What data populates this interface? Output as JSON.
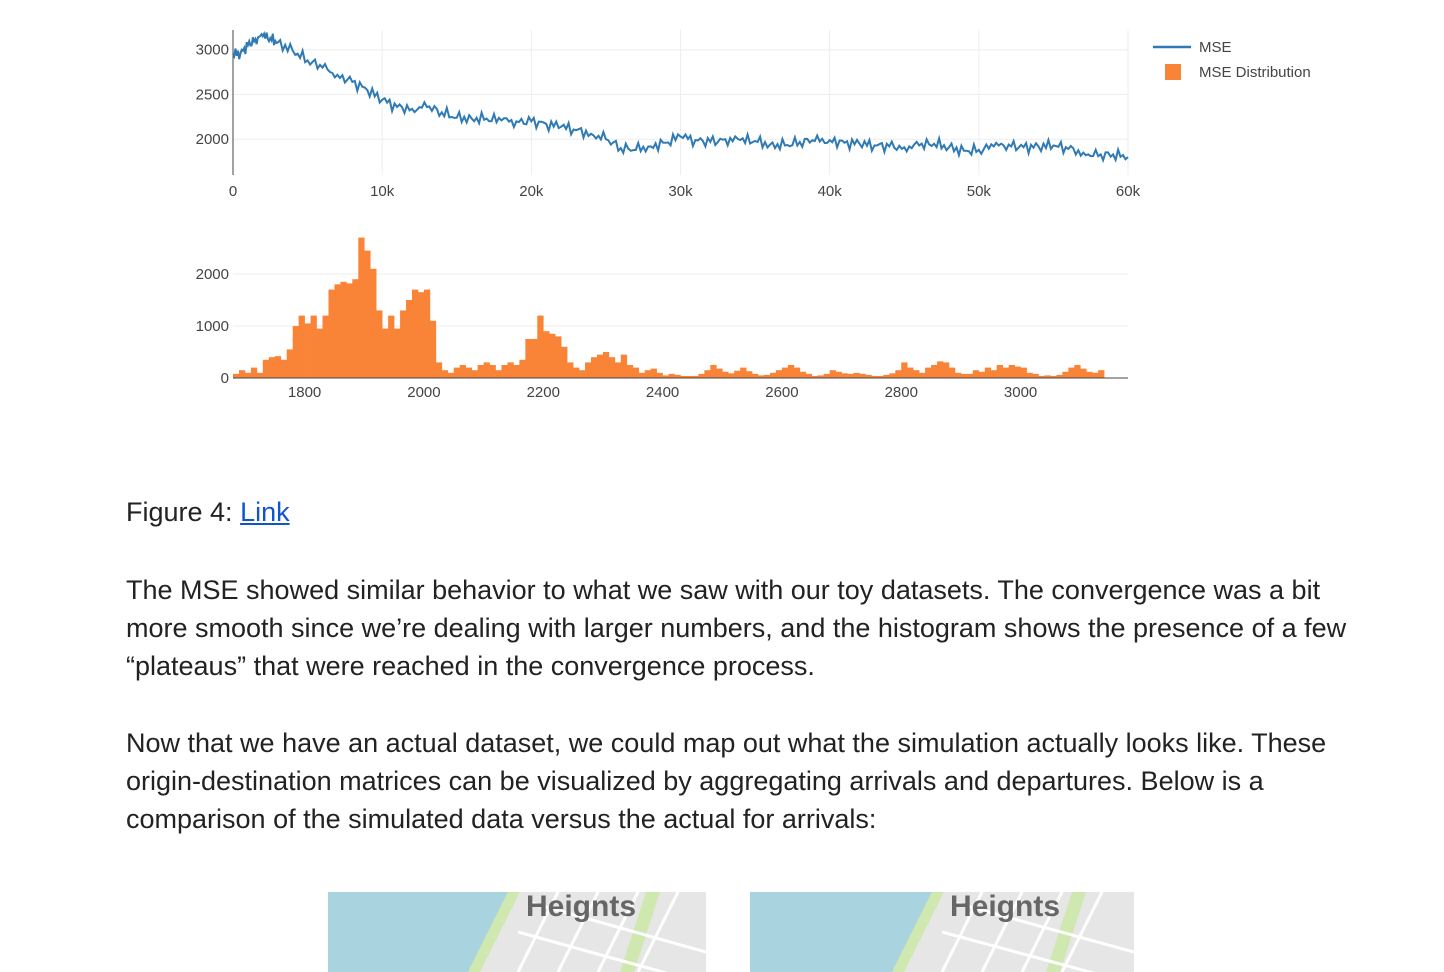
{
  "chart_data": [
    {
      "type": "line",
      "title": "",
      "xlabel": "",
      "ylabel": "",
      "xlim": [
        0,
        60000
      ],
      "ylim": [
        1600,
        3220
      ],
      "x_ticks": [
        0,
        10000,
        20000,
        30000,
        40000,
        50000,
        60000
      ],
      "x_tick_labels": [
        "0",
        "10k",
        "20k",
        "30k",
        "40k",
        "50k",
        "60k"
      ],
      "y_ticks": [
        2000,
        2500,
        3000
      ],
      "y_tick_labels": [
        "2000",
        "2500",
        "3000"
      ],
      "grid": true,
      "color": "#2f7ab4",
      "series": [
        {
          "name": "MSE",
          "x": [
            0,
            500,
            1000,
            1500,
            2000,
            2500,
            3000,
            4000,
            5000,
            6000,
            7000,
            8000,
            9000,
            10000,
            11000,
            12000,
            13000,
            14000,
            15000,
            16000,
            17000,
            18000,
            19000,
            20000,
            21000,
            22000,
            23000,
            24000,
            25000,
            26000,
            27000,
            28000,
            29000,
            30000,
            31000,
            32000,
            33000,
            34000,
            35000,
            36000,
            37000,
            38000,
            39000,
            40000,
            41000,
            42000,
            43000,
            44000,
            45000,
            46000,
            47000,
            48000,
            49000,
            50000,
            51000,
            52000,
            53000,
            54000,
            55000,
            56000,
            57000,
            58000,
            59000,
            60000
          ],
          "y": [
            2950,
            2960,
            3050,
            3120,
            3150,
            3130,
            3080,
            2990,
            2880,
            2800,
            2720,
            2640,
            2550,
            2440,
            2360,
            2340,
            2360,
            2300,
            2240,
            2230,
            2230,
            2210,
            2200,
            2200,
            2170,
            2140,
            2100,
            2060,
            2000,
            1900,
            1880,
            1920,
            1960,
            2030,
            1990,
            1970,
            2000,
            1990,
            1980,
            1940,
            1930,
            1970,
            1980,
            1990,
            1960,
            1950,
            1930,
            1920,
            1910,
            1930,
            1950,
            1910,
            1870,
            1880,
            1920,
            1940,
            1910,
            1920,
            1930,
            1890,
            1850,
            1810,
            1830,
            1800
          ]
        }
      ]
    },
    {
      "type": "bar",
      "title": "",
      "xlabel": "",
      "ylabel": "",
      "xlim": [
        1680,
        3180
      ],
      "ylim": [
        0,
        2750
      ],
      "bin_start": 1680,
      "bin_width": 10,
      "x_ticks": [
        1800,
        2000,
        2200,
        2400,
        2600,
        2800,
        3000
      ],
      "x_tick_labels": [
        "1800",
        "2000",
        "2200",
        "2400",
        "2600",
        "2800",
        "3000"
      ],
      "y_ticks": [
        0,
        1000,
        2000
      ],
      "y_tick_labels": [
        "0",
        "1000",
        "2000"
      ],
      "grid": true,
      "color": "#f98337",
      "series": [
        {
          "name": "MSE Distribution",
          "values": [
            80,
            150,
            100,
            200,
            100,
            350,
            400,
            420,
            350,
            550,
            1000,
            1200,
            1050,
            1200,
            950,
            1200,
            1700,
            1800,
            1850,
            1820,
            1900,
            2700,
            2450,
            2100,
            1300,
            950,
            1200,
            950,
            1300,
            1500,
            1700,
            1650,
            1700,
            1100,
            300,
            150,
            100,
            200,
            250,
            200,
            150,
            250,
            300,
            250,
            150,
            250,
            300,
            250,
            350,
            750,
            750,
            1200,
            900,
            850,
            800,
            600,
            300,
            200,
            150,
            300,
            400,
            450,
            500,
            400,
            300,
            450,
            250,
            200,
            100,
            150,
            180,
            100,
            50,
            80,
            60,
            40,
            40,
            40,
            80,
            150,
            250,
            180,
            120,
            90,
            140,
            200,
            130,
            80,
            50,
            60,
            100,
            150,
            200,
            250,
            200,
            120,
            80,
            40,
            50,
            80,
            150,
            120,
            90,
            80,
            100,
            80,
            60,
            40,
            40,
            60,
            90,
            150,
            300,
            200,
            150,
            100,
            200,
            250,
            320,
            300,
            200,
            100,
            80,
            80,
            150,
            120,
            200,
            150,
            250,
            200,
            250,
            220,
            200,
            100,
            80,
            40,
            50,
            40,
            60,
            120,
            200,
            250,
            180,
            120,
            100,
            150
          ]
        }
      ]
    }
  ],
  "legend": {
    "placement": "top-right",
    "items": [
      {
        "label": "MSE",
        "symbol": "line",
        "color": "#2f7ab4"
      },
      {
        "label": "MSE Distribution",
        "symbol": "square",
        "color": "#f98337"
      }
    ]
  },
  "caption": {
    "prefix": "Figure 4: ",
    "link_text": "Link"
  },
  "paragraphs": [
    "The MSE showed similar behavior to what we saw with our toy datasets. The convergence was a bit more smooth since we’re dealing with larger numbers, and the histogram shows the presence of a few “plateaus” that were reached in the convergence process.",
    "Now that we have an actual dataset, we could map out what the simulation actually looks like. These origin-destination matrices can be visualized by aggregating arrivals and departures. Below is a comparison of the simulated data versus the actual for arrivals:"
  ],
  "maps": [
    {
      "label": "Heignts",
      "water_color": "#a9d3df",
      "park_color": "#cfe8b0"
    },
    {
      "label": "Heignts",
      "water_color": "#a9d3df",
      "park_color": "#cfe8b0"
    }
  ]
}
